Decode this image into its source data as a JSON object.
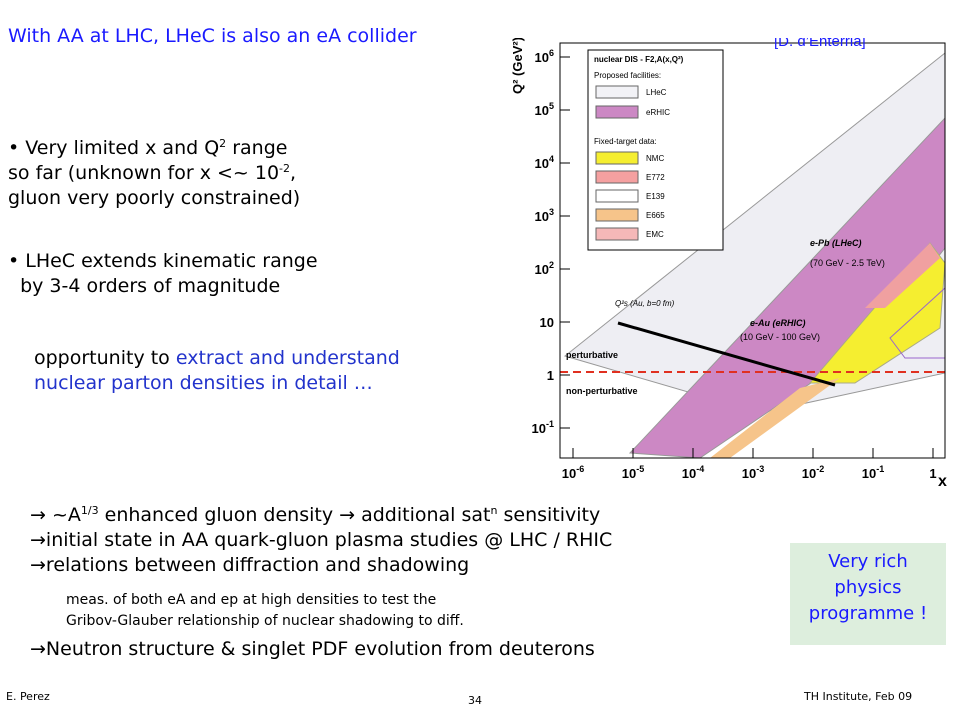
{
  "slide": {
    "title": "With AA at LHC, LHeC is also an eA collider",
    "bullet1": [
      [
        {
          "text": "• Very limited x and Q"
        },
        {
          "text": "2",
          "sup": true
        },
        {
          "text": " range"
        }
      ],
      [
        {
          "text": "so far (unknown for x <~ 10"
        },
        {
          "text": "-2",
          "sup": true
        },
        {
          "text": ","
        }
      ],
      [
        {
          "text": "gluon very poorly constrained)"
        }
      ]
    ],
    "bullet2": [
      [
        {
          "text": "• LHeC extends kinematic range"
        }
      ],
      [
        {
          "text": "  by 3-4 orders of magnitude"
        }
      ]
    ],
    "opportunity": [
      [
        {
          "text": "opportunity to "
        },
        {
          "text": "extract and understand",
          "color": "#2233cc"
        }
      ],
      [
        {
          "text": "nuclear parton densities in detail …",
          "color": "#2233cc"
        }
      ]
    ],
    "points": [
      [
        {
          "text": "→ ~A"
        },
        {
          "text": "1/3",
          "sup": true
        },
        {
          "text": " enhanced gluon density → additional sat"
        },
        {
          "text": "n",
          "sup": true
        },
        {
          "text": " sensitivity"
        }
      ],
      [
        {
          "text": "→initial state in AA quark-gluon plasma studies @ LHC / RHIC"
        }
      ],
      [
        {
          "text": "→relations between diffraction and shadowing"
        }
      ]
    ],
    "small": [
      [
        {
          "text": "meas. of both eA and ep at high densities to test the"
        }
      ],
      [
        {
          "text": "Gribov-Glauber relationship of nuclear shadowing to diff."
        }
      ]
    ],
    "last": [
      [
        {
          "text": "→Neutron structure & singlet PDF evolution from deuterons"
        }
      ]
    ],
    "box": [
      "Very rich",
      "physics",
      "programme !"
    ],
    "footer": {
      "author": "E. Perez",
      "page": "34",
      "venue": "TH Institute, Feb 09"
    }
  },
  "figure": {
    "credit": "[D. d’Enterria]",
    "ylabel": "Q² (GeV²)",
    "xlabel": "x",
    "yticks": [
      {
        "base": "10",
        "exp": "6"
      },
      {
        "base": "10",
        "exp": "5"
      },
      {
        "base": "10",
        "exp": "4"
      },
      {
        "base": "10",
        "exp": "3"
      },
      {
        "base": "10",
        "exp": "2"
      },
      {
        "base": "10"
      },
      {
        "base": "1"
      },
      {
        "base": "10",
        "exp": "-1"
      }
    ],
    "xticks": [
      {
        "base": "10",
        "exp": "-6"
      },
      {
        "base": "10",
        "exp": "-5"
      },
      {
        "base": "10",
        "exp": "-4"
      },
      {
        "base": "10",
        "exp": "-3"
      },
      {
        "base": "10",
        "exp": "-2"
      },
      {
        "base": "10",
        "exp": "-1"
      },
      {
        "base": "1"
      }
    ],
    "legend": {
      "title": "nuclear DIS - F2,A(x,Q²)",
      "proposed": "Proposed facilities:",
      "fixed": "Fixed-target data:",
      "items": [
        "LHeC",
        "eRHIC",
        "NMC",
        "E772",
        "E139",
        "E665",
        "EMC"
      ]
    },
    "labels": {
      "epb": "e-Pb (LHeC)",
      "epbE": "(70 GeV - 2.5 TeV)",
      "eau": "e-Au (eRHIC)",
      "eauE": "(10 GeV - 100 GeV)",
      "pert": "perturbative",
      "nonpert": "non-perturbative",
      "qs": "Q²s (Au, b=0 fm)"
    }
  }
}
